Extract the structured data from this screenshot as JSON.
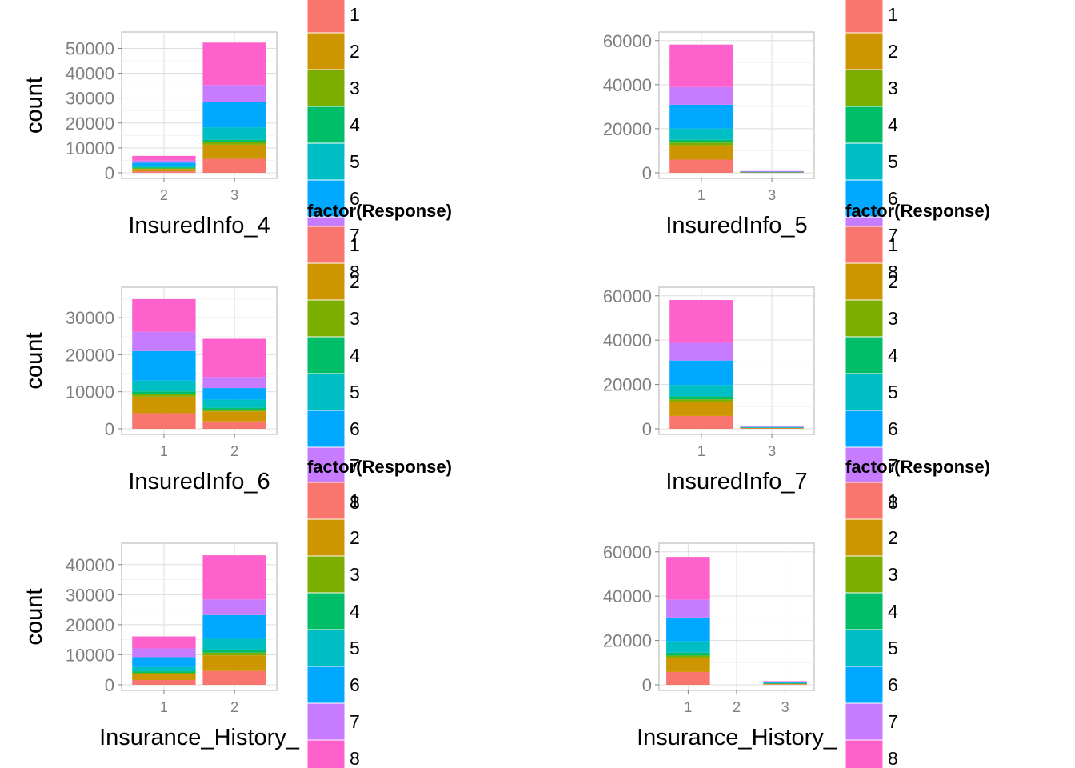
{
  "palette": [
    "#F8766D",
    "#CD9600",
    "#7CAE00",
    "#00BE67",
    "#00BFC4",
    "#00A9FF",
    "#C77CFF",
    "#FF61CC"
  ],
  "legend": {
    "title": "factor(Response)",
    "labels": [
      "1",
      "2",
      "3",
      "4",
      "5",
      "6",
      "7",
      "8"
    ]
  },
  "chart_data": [
    {
      "type": "bar",
      "stacked": true,
      "xlabel": "InsuredInfo_4",
      "ylabel": "count",
      "categories": [
        "2",
        "3"
      ],
      "ylim": [
        0,
        54000
      ],
      "yticks": [
        0,
        10000,
        20000,
        30000,
        40000,
        50000
      ],
      "series": [
        {
          "name": "1",
          "values": [
            600,
            5600
          ]
        },
        {
          "name": "2",
          "values": [
            900,
            5700
          ]
        },
        {
          "name": "3",
          "values": [
            300,
            1000
          ]
        },
        {
          "name": "4",
          "values": [
            400,
            1000
          ]
        },
        {
          "name": "5",
          "values": [
            700,
            5000
          ]
        },
        {
          "name": "6",
          "values": [
            1200,
            10000
          ]
        },
        {
          "name": "7",
          "values": [
            800,
            7000
          ]
        },
        {
          "name": "8",
          "values": [
            1900,
            17000
          ]
        }
      ]
    },
    {
      "type": "bar",
      "stacked": true,
      "xlabel": "InsuredInfo_5",
      "ylabel": "count",
      "categories": [
        "1",
        "3"
      ],
      "ylim": [
        0,
        61000
      ],
      "yticks": [
        0,
        20000,
        40000,
        60000
      ],
      "series": [
        {
          "name": "1",
          "values": [
            6000,
            150
          ]
        },
        {
          "name": "2",
          "values": [
            6500,
            150
          ]
        },
        {
          "name": "3",
          "values": [
            1200,
            40
          ]
        },
        {
          "name": "4",
          "values": [
            1300,
            40
          ]
        },
        {
          "name": "5",
          "values": [
            5100,
            80
          ]
        },
        {
          "name": "6",
          "values": [
            10800,
            120
          ]
        },
        {
          "name": "7",
          "values": [
            8000,
            100
          ]
        },
        {
          "name": "8",
          "values": [
            19300,
            120
          ]
        }
      ]
    },
    {
      "type": "bar",
      "stacked": true,
      "xlabel": "InsuredInfo_6",
      "ylabel": "count",
      "categories": [
        "1",
        "2"
      ],
      "ylim": [
        0,
        36500
      ],
      "yticks": [
        0,
        10000,
        20000,
        30000
      ],
      "series": [
        {
          "name": "1",
          "values": [
            4200,
            2000
          ]
        },
        {
          "name": "2",
          "values": [
            4500,
            2700
          ]
        },
        {
          "name": "3",
          "values": [
            600,
            500
          ]
        },
        {
          "name": "4",
          "values": [
            800,
            500
          ]
        },
        {
          "name": "5",
          "values": [
            2900,
            2200
          ]
        },
        {
          "name": "6",
          "values": [
            8000,
            3100
          ]
        },
        {
          "name": "7",
          "values": [
            5200,
            3000
          ]
        },
        {
          "name": "8",
          "values": [
            8800,
            10300
          ]
        }
      ]
    },
    {
      "type": "bar",
      "stacked": true,
      "xlabel": "InsuredInfo_7",
      "ylabel": "count",
      "categories": [
        "1",
        "3"
      ],
      "ylim": [
        0,
        61000
      ],
      "yticks": [
        0,
        20000,
        40000,
        60000
      ],
      "series": [
        {
          "name": "1",
          "values": [
            5800,
            200
          ]
        },
        {
          "name": "2",
          "values": [
            6300,
            250
          ]
        },
        {
          "name": "3",
          "values": [
            1200,
            50
          ]
        },
        {
          "name": "4",
          "values": [
            1300,
            50
          ]
        },
        {
          "name": "5",
          "values": [
            5200,
            100
          ]
        },
        {
          "name": "6",
          "values": [
            11000,
            200
          ]
        },
        {
          "name": "7",
          "values": [
            8000,
            150
          ]
        },
        {
          "name": "8",
          "values": [
            19300,
            200
          ]
        }
      ]
    },
    {
      "type": "bar",
      "stacked": true,
      "xlabel": "Insurance_History_",
      "ylabel": "count",
      "categories": [
        "1",
        "2"
      ],
      "ylim": [
        0,
        45000
      ],
      "yticks": [
        0,
        10000,
        20000,
        30000,
        40000
      ],
      "series": [
        {
          "name": "1",
          "values": [
            1600,
            4600
          ]
        },
        {
          "name": "2",
          "values": [
            2000,
            5200
          ]
        },
        {
          "name": "3",
          "values": [
            400,
            900
          ]
        },
        {
          "name": "4",
          "values": [
            500,
            900
          ]
        },
        {
          "name": "5",
          "values": [
            1400,
            3700
          ]
        },
        {
          "name": "6",
          "values": [
            3300,
            7900
          ]
        },
        {
          "name": "7",
          "values": [
            2900,
            5200
          ]
        },
        {
          "name": "8",
          "values": [
            4000,
            14700
          ]
        }
      ]
    },
    {
      "type": "bar",
      "stacked": true,
      "xlabel": "Insurance_History_",
      "ylabel": "count",
      "categories": [
        "1",
        "2",
        "3"
      ],
      "ylim": [
        0,
        61000
      ],
      "yticks": [
        0,
        20000,
        40000,
        60000
      ],
      "series": [
        {
          "name": "1",
          "values": [
            5800,
            0,
            250
          ]
        },
        {
          "name": "2",
          "values": [
            6200,
            0,
            300
          ]
        },
        {
          "name": "3",
          "values": [
            1200,
            0,
            60
          ]
        },
        {
          "name": "4",
          "values": [
            1300,
            0,
            60
          ]
        },
        {
          "name": "5",
          "values": [
            5200,
            0,
            200
          ]
        },
        {
          "name": "6",
          "values": [
            10700,
            0,
            300
          ]
        },
        {
          "name": "7",
          "values": [
            8000,
            0,
            200
          ]
        },
        {
          "name": "8",
          "values": [
            19300,
            0,
            300
          ]
        }
      ]
    }
  ]
}
